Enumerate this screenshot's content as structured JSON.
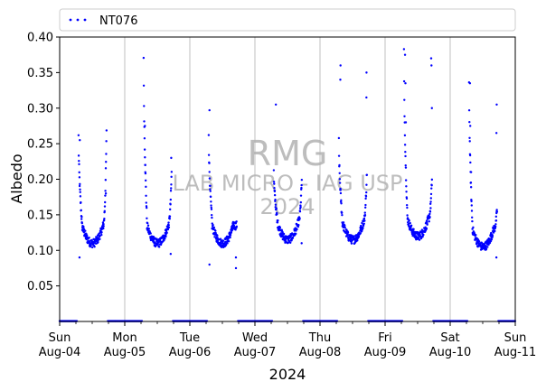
{
  "chart_data": {
    "type": "scatter",
    "title": "",
    "xlabel": "2024",
    "ylabel": "Albedo",
    "ylim": [
      0.0,
      0.4
    ],
    "xlim_days": [
      0,
      7
    ],
    "grid": "vertical lines at day boundaries",
    "legend_placement": "top-left, above plot",
    "marker_color": "#0000ff",
    "watermark": [
      "RMG",
      "LAB MICRO - IAG USP",
      "2024"
    ],
    "y_ticks": [
      {
        "value": 0.05,
        "label": "0.05"
      },
      {
        "value": 0.1,
        "label": "0.10"
      },
      {
        "value": 0.15,
        "label": "0.15"
      },
      {
        "value": 0.2,
        "label": "0.20"
      },
      {
        "value": 0.25,
        "label": "0.25"
      },
      {
        "value": 0.3,
        "label": "0.30"
      },
      {
        "value": 0.35,
        "label": "0.35"
      },
      {
        "value": 0.4,
        "label": "0.40"
      }
    ],
    "x_ticks": [
      {
        "day": 0,
        "line1": "Sun",
        "line2": "Aug-04"
      },
      {
        "day": 1,
        "line1": "Mon",
        "line2": "Aug-05"
      },
      {
        "day": 2,
        "line1": "Tue",
        "line2": "Aug-06"
      },
      {
        "day": 3,
        "line1": "Wed",
        "line2": "Aug-07"
      },
      {
        "day": 4,
        "line1": "Thu",
        "line2": "Aug-08"
      },
      {
        "day": 5,
        "line1": "Fri",
        "line2": "Aug-09"
      },
      {
        "day": 6,
        "line1": "Sat",
        "line2": "Aug-10"
      },
      {
        "day": 7,
        "line1": "Sun",
        "line2": "Aug-11"
      }
    ],
    "series": [
      {
        "name": "NT076",
        "days": [
          {
            "base": 0.115,
            "start_albedo": 0.26,
            "end_albedo": 0.265,
            "outliers": [
              0.09,
              0.18,
              0.255
            ]
          },
          {
            "base": 0.115,
            "start_albedo": 0.375,
            "end_albedo": 0.21,
            "outliers": [
              0.275,
              0.23,
              0.22,
              0.095
            ]
          },
          {
            "base": 0.115,
            "start_albedo": 0.265,
            "end_albedo": 0.135,
            "outliers": [
              0.297,
              0.075,
              0.08,
              0.09
            ]
          },
          {
            "base": 0.12,
            "start_albedo": 0.21,
            "end_albedo": 0.2,
            "outliers": [
              0.305,
              0.11
            ]
          },
          {
            "base": 0.12,
            "start_albedo": 0.255,
            "end_albedo": 0.21,
            "outliers": [
              0.34,
              0.35,
              0.36,
              0.315
            ]
          },
          {
            "base": 0.125,
            "start_albedo": 0.38,
            "end_albedo": 0.2,
            "outliers": [
              0.375,
              0.36,
              0.335,
              0.3,
              0.28,
              0.37
            ]
          },
          {
            "base": 0.11,
            "start_albedo": 0.34,
            "end_albedo": 0.155,
            "outliers": [
              0.335,
              0.305,
              0.275,
              0.265,
              0.21,
              0.09
            ]
          }
        ]
      }
    ]
  }
}
